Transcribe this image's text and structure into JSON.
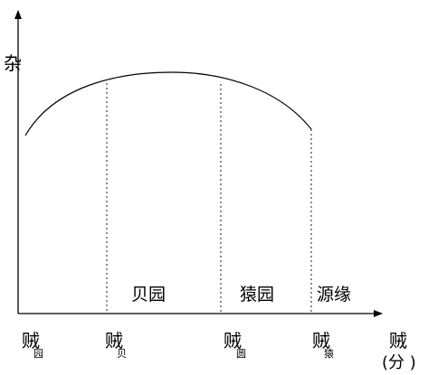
{
  "diagram": {
    "y_axis_label": "杂",
    "x_axis_label": "贼",
    "x_axis_unit": "(分 )",
    "colors": {
      "stroke": "#000000",
      "background": "#ffffff"
    },
    "ticks": [
      {
        "main": "贼",
        "sub": "园"
      },
      {
        "main": "贼",
        "sub": "贝"
      },
      {
        "main": "贼",
        "sub": "圆"
      },
      {
        "main": "贼",
        "sub": "猿"
      }
    ],
    "zones": [
      {
        "label": ""
      },
      {
        "label": "贝园"
      },
      {
        "label": "猿园"
      },
      {
        "label": "源缘"
      }
    ]
  }
}
